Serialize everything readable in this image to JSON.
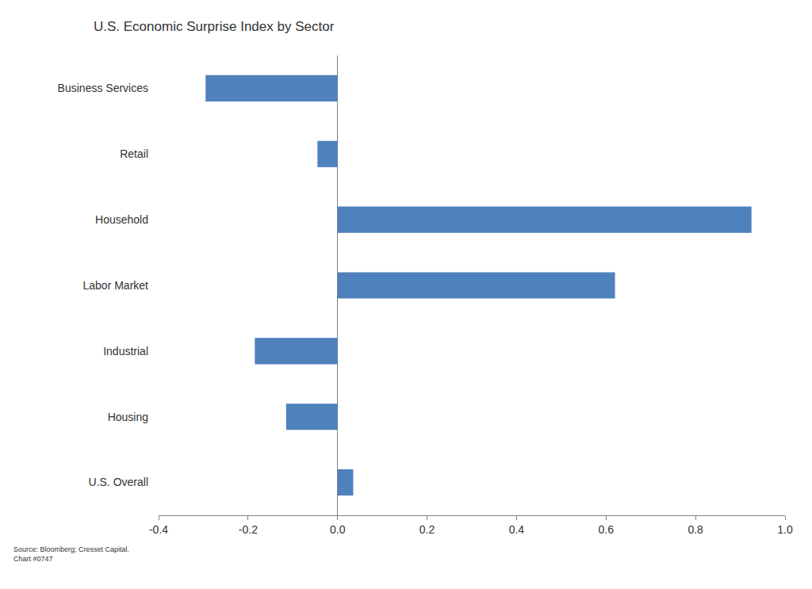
{
  "chart_data": {
    "type": "bar",
    "orientation": "horizontal",
    "title": "U.S. Economic Surprise Index by Sector",
    "categories": [
      "Business Services",
      "Retail",
      "Household",
      "Labor Market",
      "Industrial",
      "Housing",
      "U.S. Overall"
    ],
    "values": [
      -0.295,
      -0.045,
      0.925,
      0.62,
      -0.185,
      -0.115,
      0.035
    ],
    "color": "#4f81bd",
    "xlim": [
      -0.4,
      1.0
    ],
    "xticks": [
      -0.4,
      -0.2,
      {
        "value": 0,
        "label": "0.0"
      },
      0.2,
      0.4,
      0.6,
      0.8,
      {
        "value": 1,
        "label": "1.0"
      }
    ],
    "grid": false,
    "annotations": [
      "Source: Bloomberg; Cresset Capital.",
      "Chart #0747"
    ]
  }
}
